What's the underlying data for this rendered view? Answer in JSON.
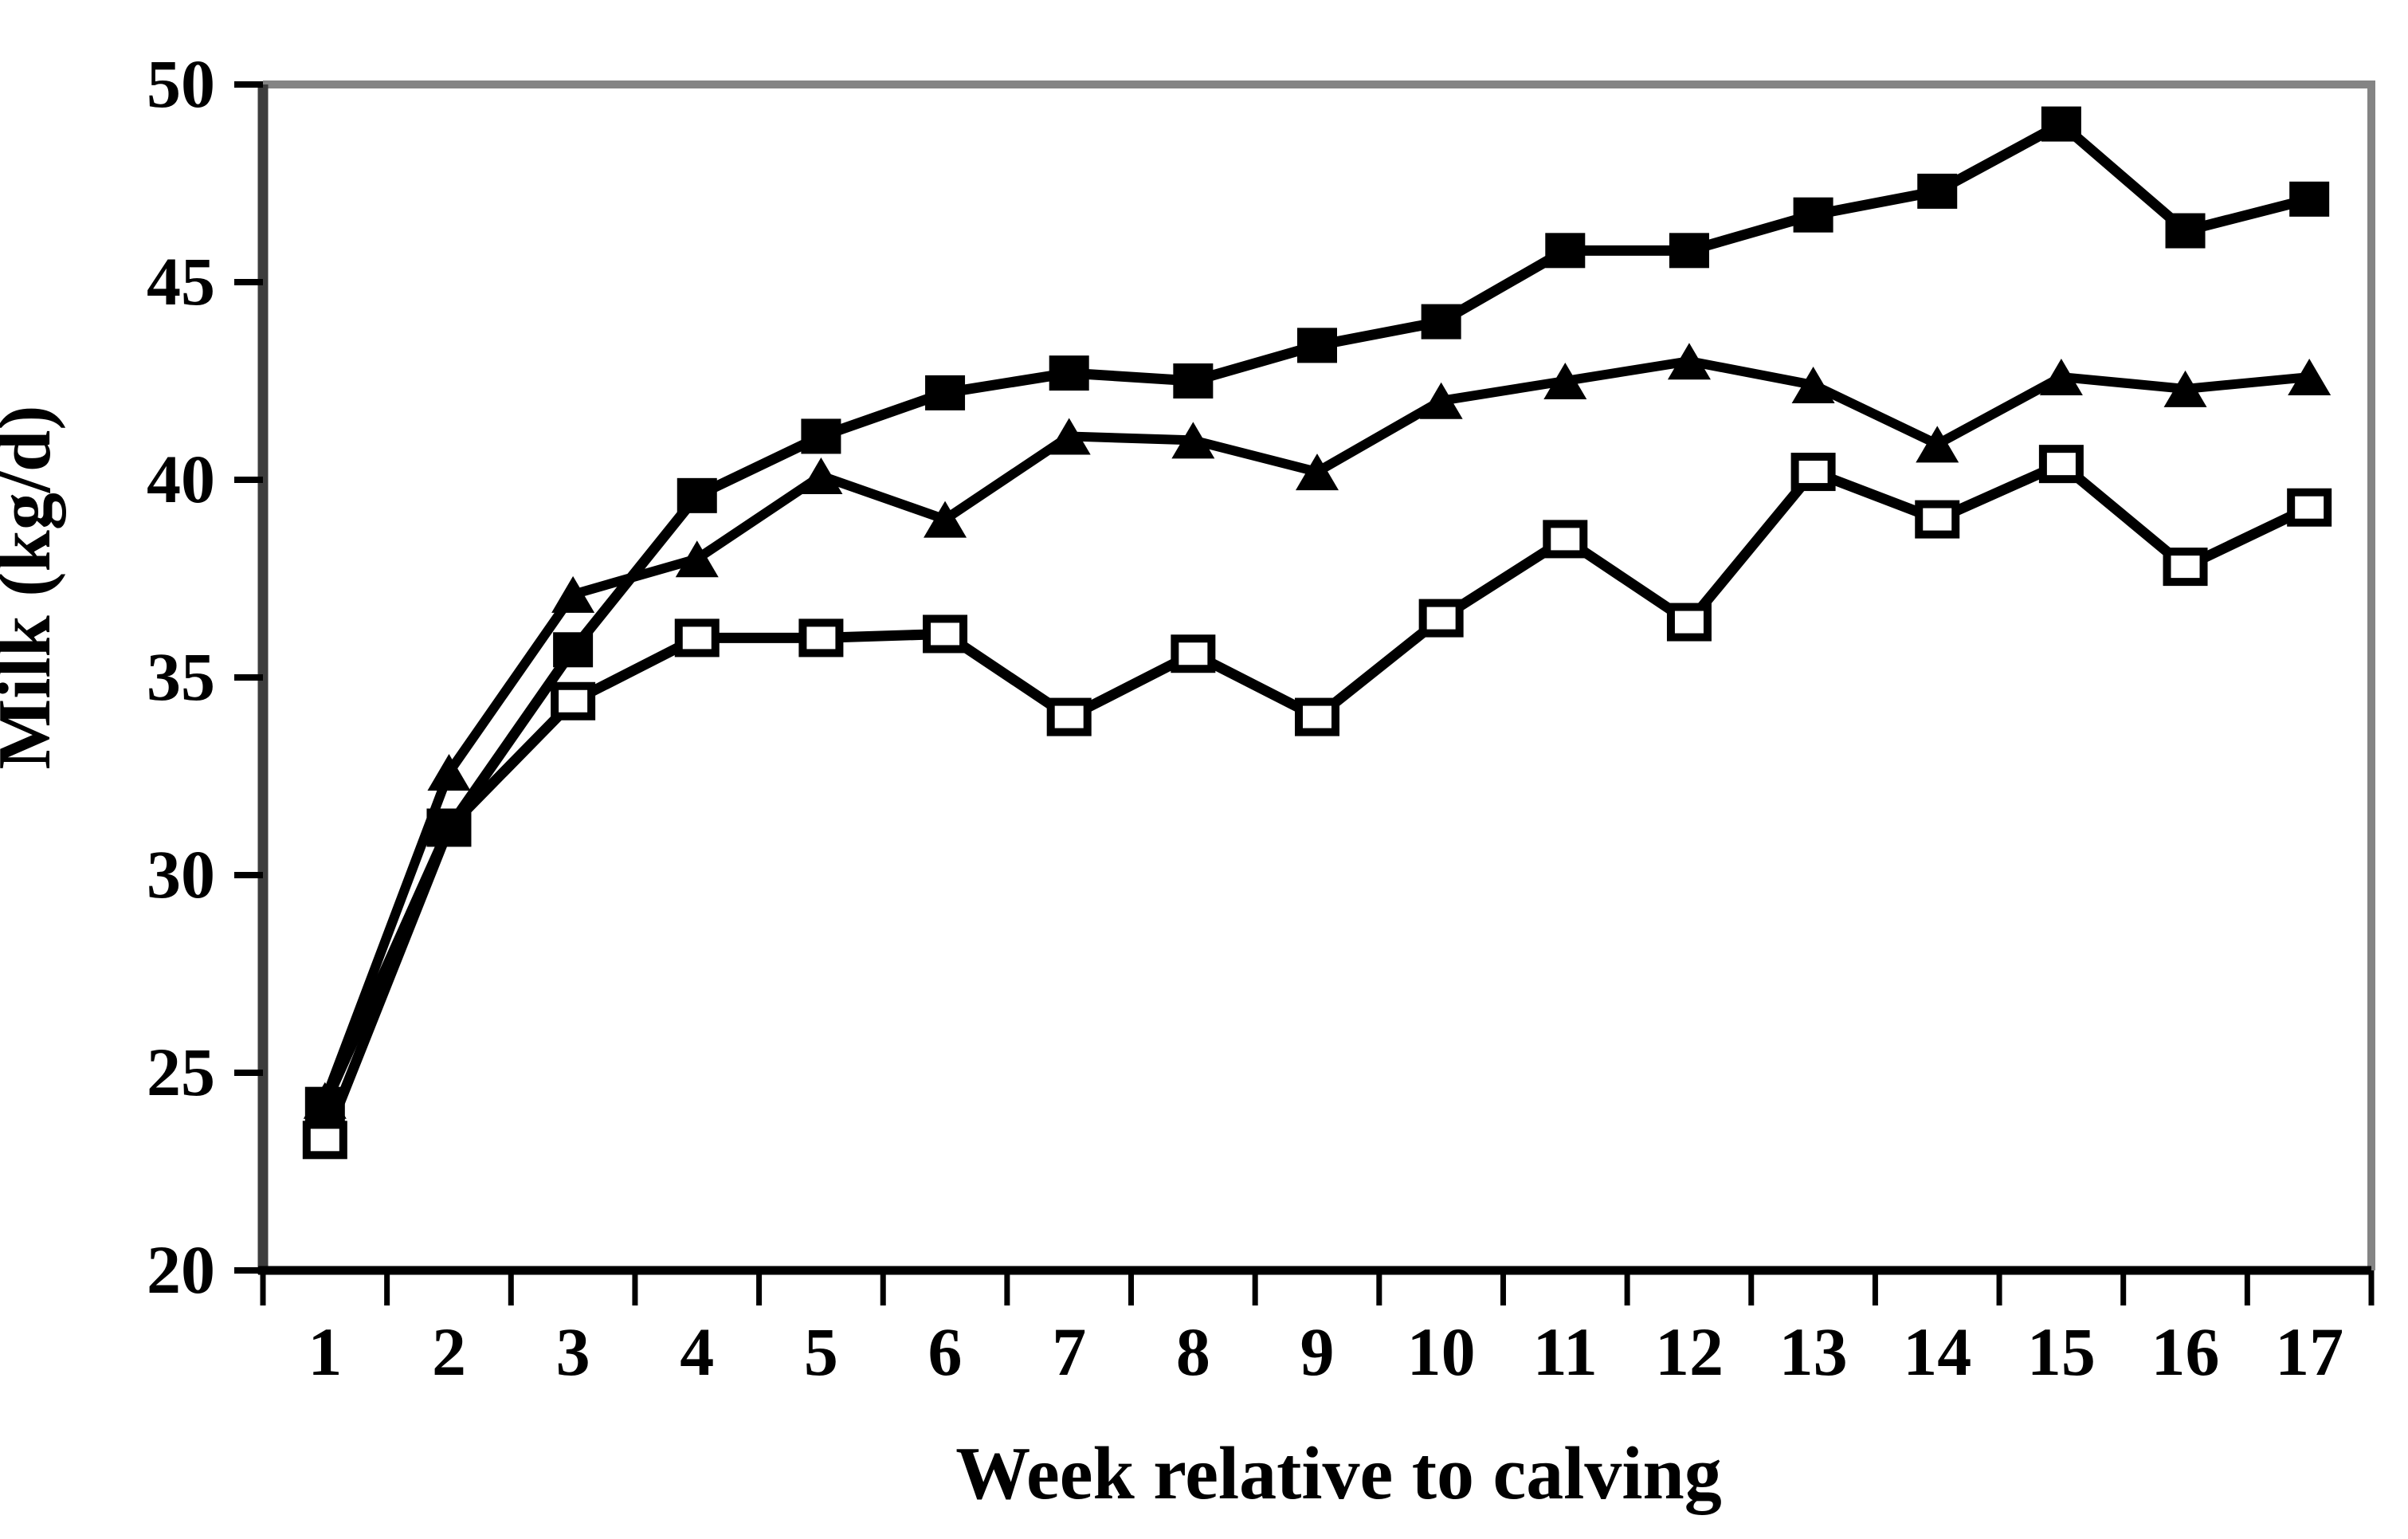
{
  "chart_data": {
    "type": "line",
    "title": "",
    "xlabel": "Week relative to calving",
    "ylabel": "Milk (kg/d)",
    "x": [
      1,
      2,
      3,
      4,
      5,
      6,
      7,
      8,
      9,
      10,
      11,
      12,
      13,
      14,
      15,
      16,
      17
    ],
    "ylim": [
      20,
      50
    ],
    "yticks": [
      20,
      25,
      30,
      35,
      40,
      45,
      50
    ],
    "grid": false,
    "legend": "none",
    "series": [
      {
        "name": "filled-square",
        "marker": "square-filled",
        "values": [
          24.2,
          31.2,
          35.7,
          39.6,
          41.1,
          42.2,
          42.7,
          42.5,
          43.4,
          44.0,
          45.8,
          45.8,
          46.7,
          47.3,
          49.0,
          46.3,
          47.1
        ]
      },
      {
        "name": "filled-triangle",
        "marker": "triangle-filled",
        "values": [
          24.3,
          32.6,
          37.1,
          38.0,
          40.1,
          39.0,
          41.1,
          41.0,
          40.2,
          42.0,
          42.5,
          43.0,
          42.4,
          40.9,
          42.6,
          42.3,
          42.6
        ]
      },
      {
        "name": "open-square",
        "marker": "square-open",
        "values": [
          23.3,
          31.2,
          34.4,
          36.0,
          36.0,
          36.1,
          34.0,
          35.6,
          34.0,
          36.5,
          38.5,
          36.4,
          40.2,
          39.0,
          40.4,
          37.8,
          39.3
        ]
      }
    ],
    "colors": {
      "series_line": "#000000",
      "marker_fill": "#000000",
      "open_marker_fill": "#ffffff",
      "plot_border": "#848484",
      "axis": "#3d3d3d",
      "tick": "#000000",
      "text": "#000000",
      "background": "#ffffff"
    }
  }
}
